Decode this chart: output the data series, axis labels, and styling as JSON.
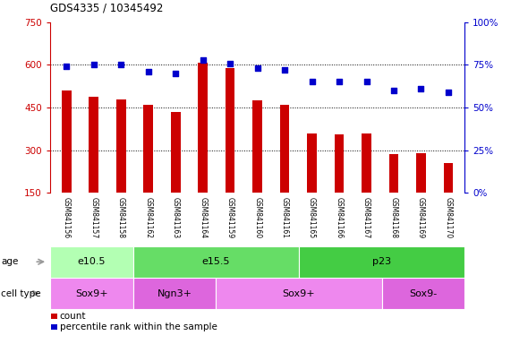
{
  "title": "GDS4335 / 10345492",
  "samples": [
    "GSM841156",
    "GSM841157",
    "GSM841158",
    "GSM841162",
    "GSM841163",
    "GSM841164",
    "GSM841159",
    "GSM841160",
    "GSM841161",
    "GSM841165",
    "GSM841166",
    "GSM841167",
    "GSM841168",
    "GSM841169",
    "GSM841170"
  ],
  "counts": [
    510,
    488,
    478,
    460,
    435,
    608,
    590,
    475,
    460,
    360,
    355,
    360,
    285,
    288,
    255
  ],
  "percentiles": [
    74,
    75,
    75,
    71,
    70,
    78,
    76,
    73,
    72,
    65,
    65,
    65,
    60,
    61,
    59
  ],
  "ylim_left": [
    150,
    750
  ],
  "ylim_right": [
    0,
    100
  ],
  "yticks_left": [
    150,
    300,
    450,
    600,
    750
  ],
  "yticks_right": [
    0,
    25,
    50,
    75,
    100
  ],
  "bar_color": "#cc0000",
  "scatter_color": "#0000cc",
  "bg_color": "#ffffff",
  "label_bg_color": "#c8c8c8",
  "age_groups": [
    {
      "label": "e10.5",
      "start": 0,
      "end": 3,
      "color": "#b3ffb3"
    },
    {
      "label": "e15.5",
      "start": 3,
      "end": 9,
      "color": "#66dd66"
    },
    {
      "label": "p23",
      "start": 9,
      "end": 15,
      "color": "#44cc44"
    }
  ],
  "cell_groups": [
    {
      "label": "Sox9+",
      "start": 0,
      "end": 3,
      "color": "#ee88ee"
    },
    {
      "label": "Ngn3+",
      "start": 3,
      "end": 6,
      "color": "#dd66dd"
    },
    {
      "label": "Sox9+",
      "start": 6,
      "end": 12,
      "color": "#ee88ee"
    },
    {
      "label": "Sox9-",
      "start": 12,
      "end": 15,
      "color": "#dd66dd"
    }
  ],
  "legend_count_label": "count",
  "legend_pct_label": "percentile rank within the sample",
  "left_axis_color": "#cc0000",
  "right_axis_color": "#0000cc",
  "fig_width": 5.9,
  "fig_height": 3.84,
  "dpi": 100
}
